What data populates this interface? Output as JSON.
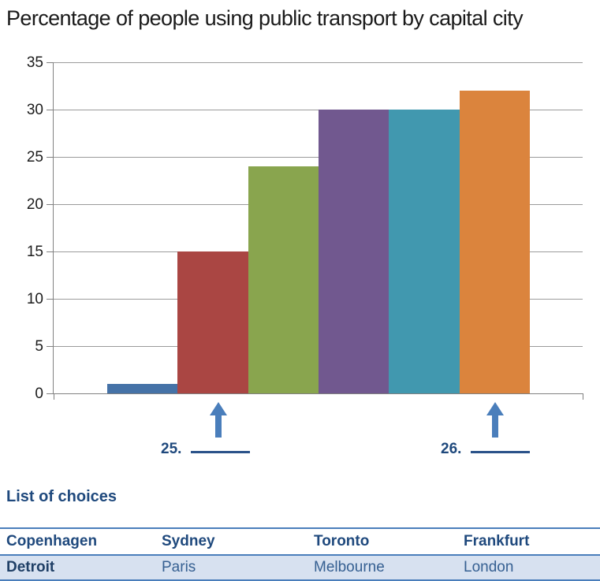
{
  "title": "Percentage of people using public transport by capital city",
  "chart_data": {
    "type": "bar",
    "title": "Percentage of people using public transport by capital city",
    "categories": [
      "",
      "",
      "",
      "",
      "",
      ""
    ],
    "values": [
      1,
      15,
      24,
      30,
      30,
      32
    ],
    "bar_colors": [
      "#4572a7",
      "#aa4643",
      "#89a54e",
      "#71588f",
      "#4198af",
      "#db843d"
    ],
    "xlabel": "",
    "ylabel": "",
    "ylim": [
      0,
      35
    ],
    "yticks": [
      0,
      5,
      10,
      15,
      20,
      25,
      30,
      35
    ],
    "grid": true,
    "legend": "none",
    "note": "bars are unlabeled; questions 25 and 26 point at bar 2 and bar 6"
  },
  "questions": [
    {
      "number": "25.",
      "points_to_bar_index": 1
    },
    {
      "number": "26.",
      "points_to_bar_index": 5
    }
  ],
  "choices": {
    "heading": "List of choices",
    "rows": [
      [
        "Copenhagen",
        "Sydney",
        "Toronto",
        "Frankfurt"
      ],
      [
        "Detroit",
        "Paris",
        "Melbourne",
        "London"
      ]
    ]
  },
  "colors": {
    "arrow": "#4a7ebb",
    "gridline": "#9b9b9b",
    "axis": "#808080",
    "question_text": "#1f497d",
    "blank_underline": "#2a5289",
    "table_border": "#4a7ebb",
    "table_header_text": "#1f497d",
    "table_row_bg": "#d7e1f0",
    "table_row_text": "#366092",
    "table_row_bold_text": "#1f3f66"
  }
}
